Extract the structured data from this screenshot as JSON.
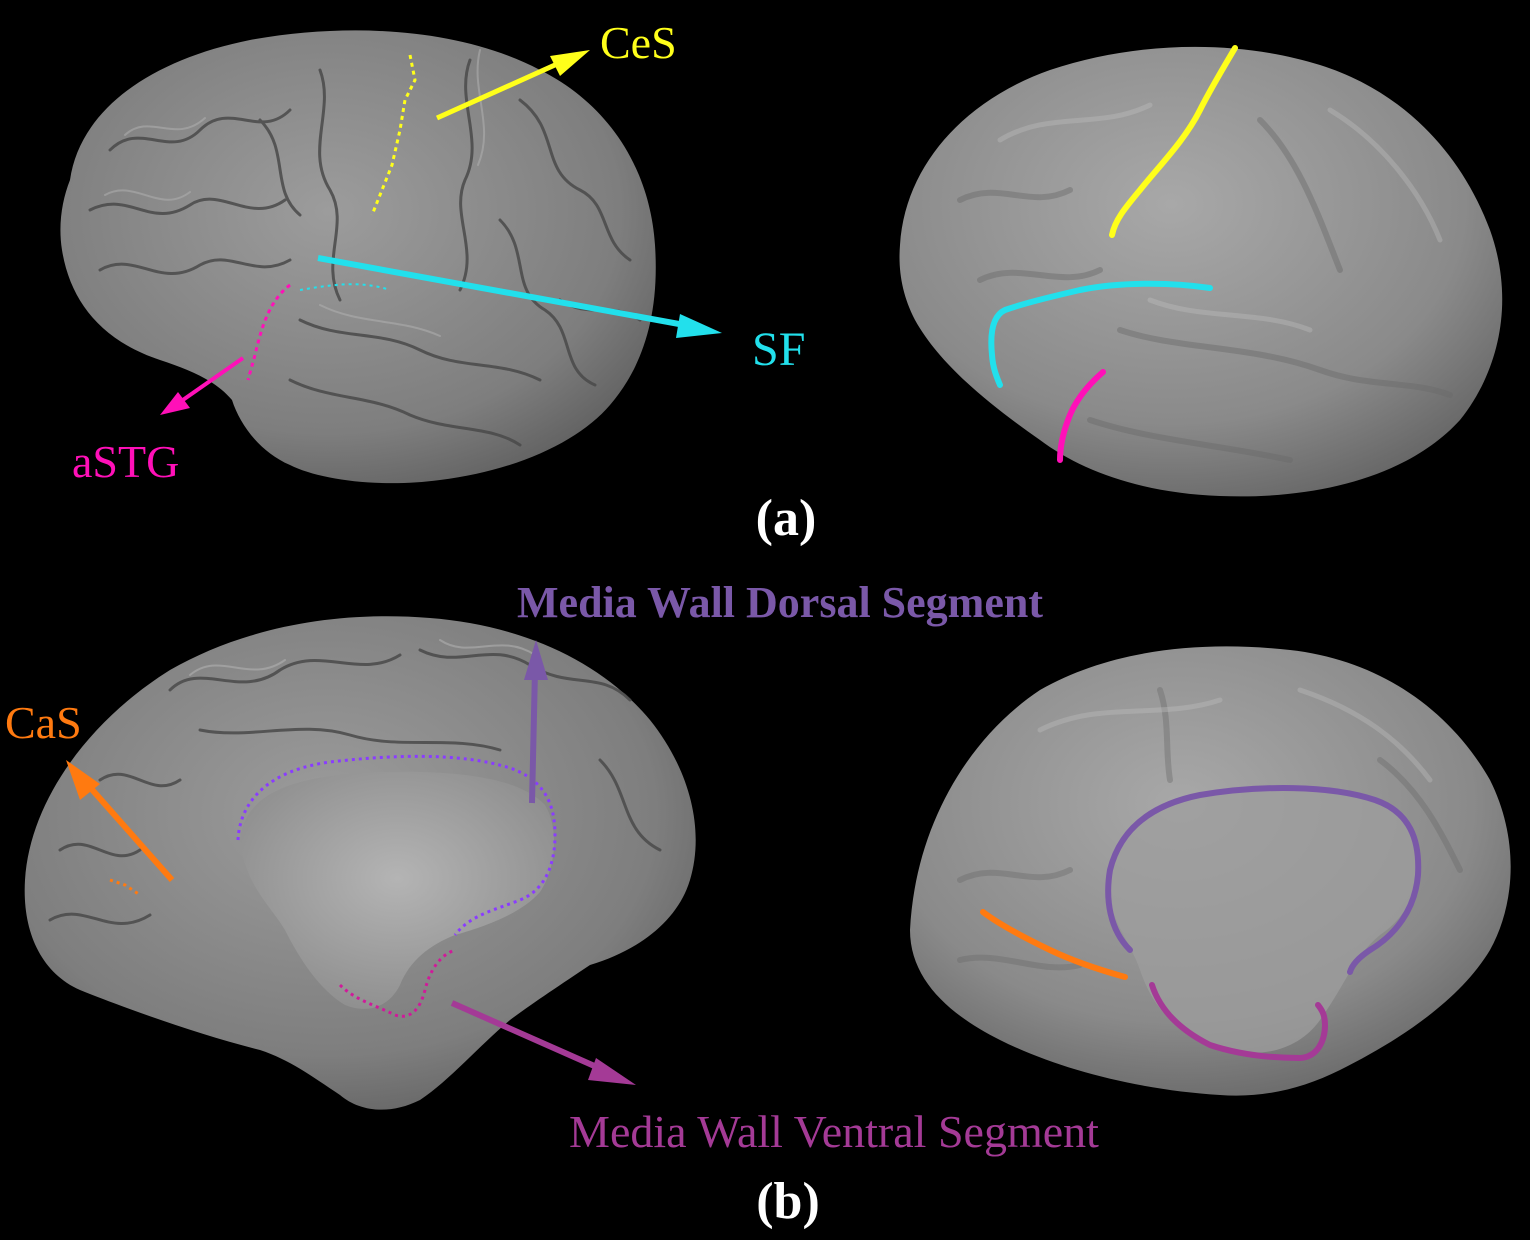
{
  "labels": {
    "ces": "CeS",
    "sf": "SF",
    "astg": "aSTG",
    "panel_a": "(a)",
    "dorsal": "Media Wall Dorsal Segment",
    "cas": "CaS",
    "ventral": "Media Wall Ventral Segment",
    "panel_b": "(b)"
  },
  "colors": {
    "background": "#000000",
    "cortex": "#8e8e8e",
    "ces": "#ffff1a",
    "sf": "#22e0ec",
    "astg": "#ff10b8",
    "cas": "#ff7a10",
    "dorsal": "#7a58a8",
    "ventral": "#a43a96"
  }
}
